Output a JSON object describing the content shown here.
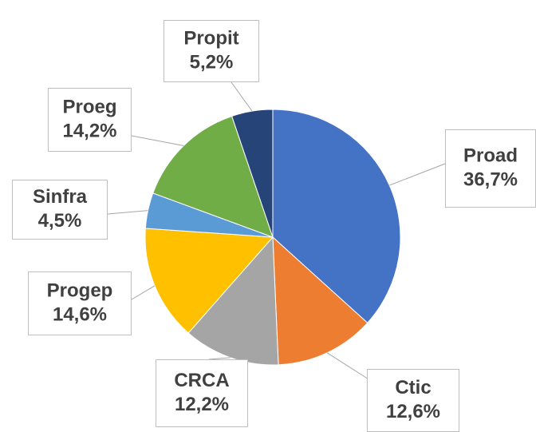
{
  "chart_data": {
    "type": "pie",
    "categories": [
      "Proad",
      "Ctic",
      "CRCA",
      "Progep",
      "Sinfra",
      "Proeg",
      "Propit"
    ],
    "values": [
      36.7,
      12.6,
      12.2,
      14.6,
      4.5,
      14.2,
      5.2
    ],
    "value_labels": [
      "36,7%",
      "12,6%",
      "12,2%",
      "14,6%",
      "4,5%",
      "14,2%",
      "5,2%"
    ],
    "colors": [
      "#4472c4",
      "#ed7d31",
      "#a5a5a5",
      "#ffc000",
      "#5b9bd5",
      "#70ad47",
      "#264478"
    ]
  }
}
